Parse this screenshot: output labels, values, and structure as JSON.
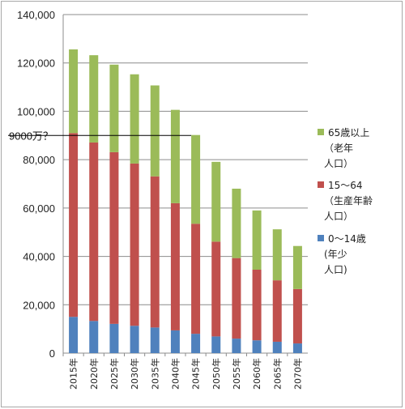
{
  "chart_data": {
    "type": "bar",
    "stacked": true,
    "categories": [
      "2015年",
      "2020年",
      "2025年",
      "2030年",
      "2035年",
      "2040年",
      "2045年",
      "2050年",
      "2055年",
      "2060年",
      "2065年",
      "2070年"
    ],
    "series": [
      {
        "name": "0～14歳 (年少人口)",
        "color": "#4f81bd",
        "values": [
          15000,
          13300,
          12100,
          11300,
          10600,
          9400,
          8000,
          6900,
          6000,
          5300,
          4700,
          4000
        ]
      },
      {
        "name": "15～64 (生産年齢人口)",
        "color": "#c0504d",
        "values": [
          76000,
          73800,
          71000,
          67100,
          62500,
          52600,
          45500,
          39200,
          33300,
          29200,
          25400,
          22500
        ]
      },
      {
        "name": "65歳以上 (老年人口)",
        "color": "#9bbb59",
        "values": [
          34600,
          36100,
          36200,
          36900,
          37600,
          38600,
          36700,
          33000,
          28700,
          24500,
          21100,
          17800
        ]
      }
    ],
    "ylim": [
      0,
      140000
    ],
    "yticks": [
      "0",
      "20,000",
      "40,000",
      "60,000",
      "80,000",
      "100,000",
      "120,000",
      "140,000"
    ],
    "grid": true,
    "legend_position": "right",
    "annotation": {
      "text": "9000万？",
      "y": 90000
    }
  },
  "legend": [
    {
      "lines": [
        "65歳以上",
        "（老年",
        "人口）"
      ]
    },
    {
      "lines": [
        "15～64",
        "（生産年齢",
        "人口）"
      ]
    },
    {
      "lines": [
        "0～14歳",
        "(年少",
        "人口)"
      ]
    }
  ]
}
